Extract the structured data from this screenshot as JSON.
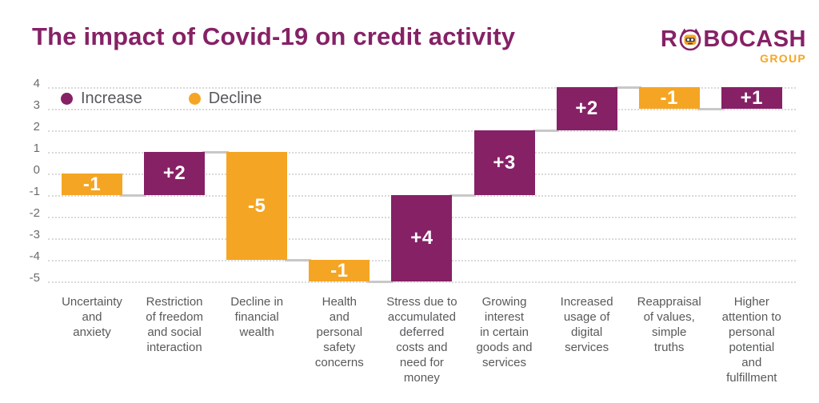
{
  "title": "The impact of Covid-19 on credit activity",
  "logo": {
    "brand_prefix": "R",
    "brand_suffix": "BOCASH",
    "group": "GROUP",
    "icon": "robot-head-icon"
  },
  "legend": {
    "increase": "Increase",
    "decline": "Decline"
  },
  "colors": {
    "purple": "#862166",
    "orange": "#F5A524",
    "title": "#862166",
    "connector": "#c8c8c8",
    "grid": "#d9d9d9",
    "bar_label": "#ffffff",
    "legend_text": "#57585c",
    "axis_text": "#6a6b6e",
    "category_text": "#58595b"
  },
  "chart_data": {
    "type": "bar",
    "subtype": "waterfall",
    "title": "The impact of Covid-19 on credit activity",
    "categories": [
      "Uncertainty\nand\nanxiety",
      "Restriction\nof freedom\nand social\ninteraction",
      "Decline in\nfinancial\nwealth",
      "Health\nand\npersonal\nsafety\nconcerns",
      "Stress due to\naccumulated\ndeferred\ncosts and\nneed for\nmoney",
      "Growing\ninterest\nin certain\ngoods and\nservices",
      "Increased\nusage of\ndigital\nservices",
      "Reappraisal\nof values,\nsimple\ntruths",
      "Higher\nattention to\npersonal\npotential\nand\nfulfillment"
    ],
    "values": [
      -1,
      2,
      -5,
      -1,
      4,
      3,
      2,
      -1,
      1
    ],
    "bar_labels": [
      "-1",
      "+2",
      "-5",
      "-1",
      "+4",
      "+3",
      "+2",
      "-1",
      "+1"
    ],
    "start_level": 0,
    "running_totals": [
      -1,
      1,
      -4,
      -5,
      -1,
      2,
      4,
      3,
      4
    ],
    "series_colors": {
      "increase": "#862166",
      "decline": "#F5A524"
    },
    "ylim": [
      -5,
      4
    ],
    "yticks": [
      4,
      3,
      2,
      1,
      0,
      -1,
      -2,
      -3,
      -4,
      -5
    ],
    "grid": "horizontal-dotted",
    "legend_position": "top-left-inside"
  }
}
